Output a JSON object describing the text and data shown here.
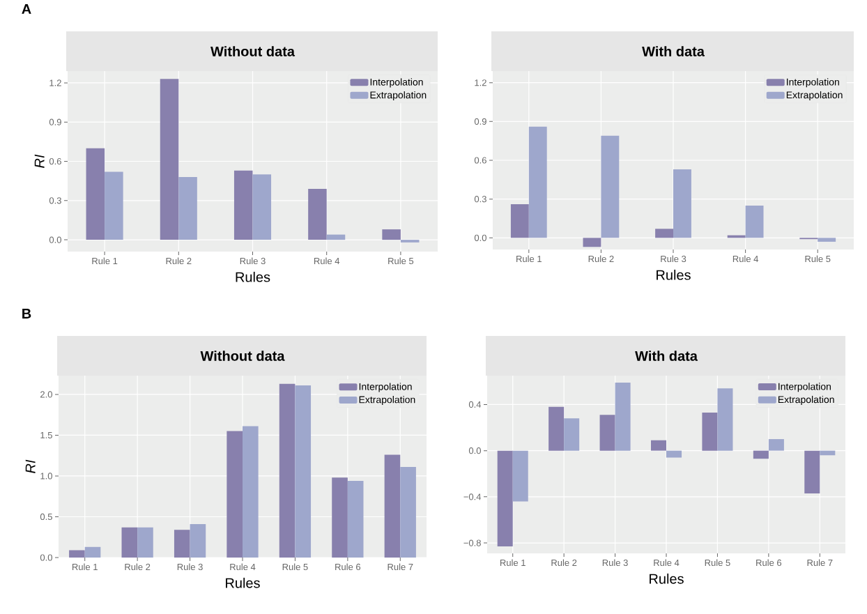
{
  "chart_data": [
    {
      "type": "bar",
      "title": "Without data",
      "xlabel": "Rules",
      "ylabel": "RI",
      "annotations": [
        "A"
      ],
      "categories": [
        "Rule 1",
        "Rule 2",
        "Rule 3",
        "Rule 4",
        "Rule 5"
      ],
      "series": [
        {
          "name": "Interpolation",
          "color": "#8880ad",
          "values": [
            0.7,
            1.23,
            0.53,
            0.39,
            0.08
          ]
        },
        {
          "name": "Extrapolation",
          "color": "#9ea7cc",
          "values": [
            0.52,
            0.48,
            0.5,
            0.04,
            -0.02
          ]
        }
      ],
      "ylim": [
        -0.09,
        1.29
      ],
      "yticks": [
        {
          "value": 0,
          "label": "0.0"
        },
        {
          "value": 0.3,
          "label": "0.3"
        },
        {
          "value": 0.6,
          "label": "0.6"
        },
        {
          "value": 0.9,
          "label": "0.9"
        },
        {
          "value": 1.2,
          "label": "1.2"
        }
      ],
      "grid": true,
      "legend": "top right"
    },
    {
      "type": "bar",
      "title": "With data",
      "xlabel": "Rules",
      "categories": [
        "Rule 1",
        "Rule 2",
        "Rule 3",
        "Rule 4",
        "Rule 5"
      ],
      "series": [
        {
          "name": "Interpolation",
          "color": "#8880ad",
          "values": [
            0.26,
            -0.07,
            0.07,
            0.02,
            -0.01
          ]
        },
        {
          "name": "Extrapolation",
          "color": "#9ea7cc",
          "values": [
            0.86,
            0.79,
            0.53,
            0.25,
            -0.03
          ]
        }
      ],
      "ylim": [
        -0.09,
        1.29
      ],
      "yticks": [
        {
          "value": 0,
          "label": "0.0"
        },
        {
          "value": 0.3,
          "label": "0.3"
        },
        {
          "value": 0.6,
          "label": "0.6"
        },
        {
          "value": 0.9,
          "label": "0.9"
        },
        {
          "value": 1.2,
          "label": "1.2"
        }
      ],
      "grid": true,
      "legend": "top right"
    },
    {
      "type": "bar",
      "title": "Without data",
      "xlabel": "Rules",
      "ylabel": "RI",
      "annotations": [
        "B"
      ],
      "categories": [
        "Rule 1",
        "Rule 2",
        "Rule 3",
        "Rule 4",
        "Rule 5",
        "Rule 6",
        "Rule 7"
      ],
      "series": [
        {
          "name": "Interpolation",
          "color": "#8880ad",
          "values": [
            0.09,
            0.37,
            0.34,
            1.55,
            2.13,
            0.98,
            1.26
          ]
        },
        {
          "name": "Extrapolation",
          "color": "#9ea7cc",
          "values": [
            0.13,
            0.37,
            0.41,
            1.61,
            2.11,
            0.94,
            1.11
          ]
        }
      ],
      "ylim": [
        0,
        2.23
      ],
      "yticks": [
        {
          "value": 0,
          "label": "0.0"
        },
        {
          "value": 0.5,
          "label": "0.5"
        },
        {
          "value": 1,
          "label": "1.0"
        },
        {
          "value": 1.5,
          "label": "1.5"
        },
        {
          "value": 2,
          "label": "2.0"
        }
      ],
      "grid": true,
      "legend": "top right"
    },
    {
      "type": "bar",
      "title": "With data",
      "xlabel": "Rules",
      "categories": [
        "Rule 1",
        "Rule 2",
        "Rule 3",
        "Rule 4",
        "Rule 5",
        "Rule 6",
        "Rule 7"
      ],
      "series": [
        {
          "name": "Interpolation",
          "color": "#8880ad",
          "values": [
            -0.83,
            0.38,
            0.31,
            0.09,
            0.33,
            -0.07,
            -0.37
          ]
        },
        {
          "name": "Extrapolation",
          "color": "#9ea7cc",
          "values": [
            -0.44,
            0.28,
            0.59,
            -0.06,
            0.54,
            0.1,
            -0.04
          ]
        }
      ],
      "ylim": [
        -0.89,
        0.65
      ],
      "yticks": [
        {
          "value": -0.8,
          "label": "−0.8"
        },
        {
          "value": -0.4,
          "label": "−0.4"
        },
        {
          "value": 0,
          "label": "0.0"
        },
        {
          "value": 0.4,
          "label": "0.4"
        }
      ],
      "grid": true,
      "legend": "top right"
    }
  ]
}
